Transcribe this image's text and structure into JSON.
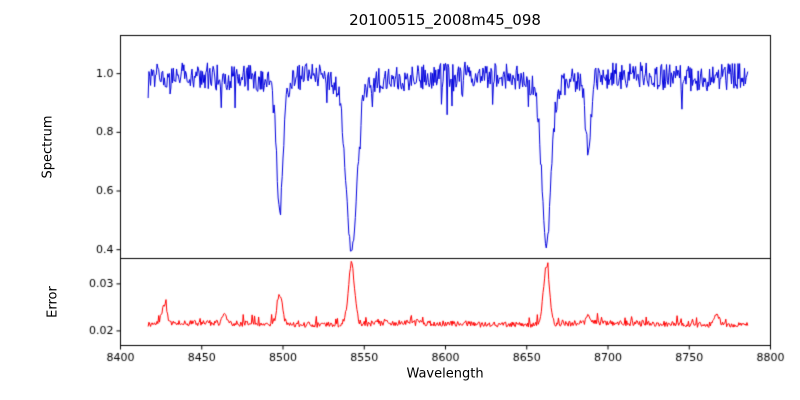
{
  "chart_data": {
    "type": "line",
    "title": "20100515_2008m45_098",
    "xlabel": "Wavelength",
    "grid": false,
    "legend": null,
    "x_range": [
      8400,
      8800
    ],
    "x_ticks": [
      8400,
      8450,
      8500,
      8550,
      8600,
      8650,
      8700,
      8750,
      8800
    ],
    "x_tick_labels": [
      "8400",
      "8450",
      "8500",
      "8550",
      "8600",
      "8650",
      "8700",
      "8750",
      "8800"
    ],
    "axis_color": "#000000",
    "background_color": "#ffffff",
    "panels": [
      {
        "ylabel": "Spectrum",
        "color": "#0000dd",
        "y_range": [
          0.37,
          1.13
        ],
        "y_ticks": [
          0.4,
          0.6,
          0.8,
          1.0
        ],
        "y_tick_labels": [
          "0.4",
          "0.6",
          "0.8",
          "1.0"
        ],
        "series": {
          "name": "normalized-spectrum",
          "x_start": 8417,
          "x_end": 8786,
          "step": 0.5,
          "continuum": 0.99,
          "jitter": 0.09,
          "dip_prob": 0.09,
          "dip_max": 0.1,
          "absorption_lines": [
            {
              "center": 8498.0,
              "min_value": 0.55,
              "sigma": 1.9
            },
            {
              "center": 8542.1,
              "min_value": 0.4,
              "sigma": 3.2
            },
            {
              "center": 8662.1,
              "min_value": 0.42,
              "sigma": 2.7
            },
            {
              "center": 8688.0,
              "min_value": 0.74,
              "sigma": 1.4
            }
          ]
        }
      },
      {
        "ylabel": "Error",
        "color": "#ff0000",
        "y_range": [
          0.0169,
          0.0354
        ],
        "y_ticks": [
          0.02,
          0.03
        ],
        "y_tick_labels": [
          "0.02",
          "0.03"
        ],
        "series": {
          "name": "error-spectrum",
          "base": 0.0215,
          "jitter": 0.0012,
          "spike_prob": 0.08,
          "spike_max": 0.0018,
          "peaks": [
            {
              "center": 8427.0,
              "height": 0.004,
              "sigma": 1.6
            },
            {
              "center": 8464.0,
              "height": 0.002,
              "sigma": 1.3
            },
            {
              "center": 8498.0,
              "height": 0.0062,
              "sigma": 1.7
            },
            {
              "center": 8542.1,
              "height": 0.0128,
              "sigma": 1.9
            },
            {
              "center": 8662.1,
              "height": 0.0124,
              "sigma": 1.8
            },
            {
              "center": 8688.0,
              "height": 0.0018,
              "sigma": 1.3
            },
            {
              "center": 8767.0,
              "height": 0.002,
              "sigma": 1.6
            }
          ]
        }
      }
    ]
  }
}
